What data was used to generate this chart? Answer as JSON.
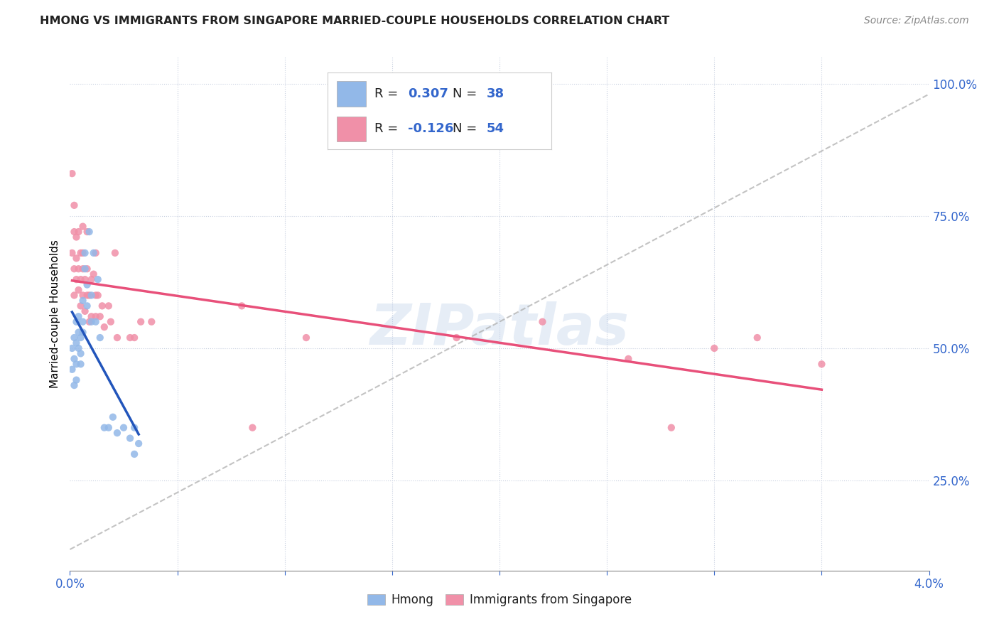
{
  "title": "HMONG VS IMMIGRANTS FROM SINGAPORE MARRIED-COUPLE HOUSEHOLDS CORRELATION CHART",
  "source": "Source: ZipAtlas.com",
  "ylabel": "Married-couple Households",
  "watermark": "ZIPatlas",
  "bottom_legend": [
    "Hmong",
    "Immigrants from Singapore"
  ],
  "hmong_color": "#92b8e8",
  "singapore_color": "#f090a8",
  "hmong_line_color": "#2255bb",
  "singapore_line_color": "#e8507a",
  "trend_line_color": "#aaaaaa",
  "xlim": [
    0.0,
    4.0
  ],
  "ylim": [
    0.08,
    1.05
  ],
  "yticks": [
    0.25,
    0.5,
    0.75,
    1.0
  ],
  "ytick_labels": [
    "25.0%",
    "50.0%",
    "75.0%",
    "100.0%"
  ],
  "R_hmong": "0.307",
  "N_hmong": "38",
  "R_singapore": "-0.126",
  "N_singapore": "54",
  "hmong_x": [
    0.01,
    0.01,
    0.02,
    0.02,
    0.02,
    0.03,
    0.03,
    0.03,
    0.03,
    0.04,
    0.04,
    0.04,
    0.05,
    0.05,
    0.05,
    0.06,
    0.06,
    0.06,
    0.07,
    0.07,
    0.08,
    0.08,
    0.09,
    0.1,
    0.1,
    0.11,
    0.12,
    0.13,
    0.14,
    0.16,
    0.18,
    0.2,
    0.22,
    0.25,
    0.28,
    0.3,
    0.3,
    0.32
  ],
  "hmong_y": [
    0.46,
    0.5,
    0.48,
    0.52,
    0.43,
    0.51,
    0.47,
    0.55,
    0.44,
    0.53,
    0.5,
    0.56,
    0.49,
    0.52,
    0.47,
    0.55,
    0.53,
    0.59,
    0.65,
    0.68,
    0.62,
    0.58,
    0.72,
    0.6,
    0.55,
    0.68,
    0.55,
    0.63,
    0.52,
    0.35,
    0.35,
    0.37,
    0.34,
    0.35,
    0.33,
    0.35,
    0.3,
    0.32
  ],
  "singapore_x": [
    0.01,
    0.01,
    0.02,
    0.02,
    0.02,
    0.02,
    0.03,
    0.03,
    0.03,
    0.04,
    0.04,
    0.04,
    0.05,
    0.05,
    0.05,
    0.06,
    0.06,
    0.06,
    0.06,
    0.07,
    0.07,
    0.08,
    0.08,
    0.08,
    0.09,
    0.09,
    0.1,
    0.1,
    0.11,
    0.12,
    0.12,
    0.12,
    0.13,
    0.14,
    0.15,
    0.16,
    0.18,
    0.19,
    0.21,
    0.22,
    0.28,
    0.3,
    0.33,
    0.38,
    0.8,
    0.85,
    1.1,
    1.8,
    2.2,
    2.6,
    2.8,
    3.0,
    3.2,
    3.5
  ],
  "singapore_y": [
    0.83,
    0.68,
    0.72,
    0.65,
    0.6,
    0.77,
    0.63,
    0.71,
    0.67,
    0.72,
    0.65,
    0.61,
    0.68,
    0.63,
    0.58,
    0.65,
    0.6,
    0.68,
    0.73,
    0.63,
    0.57,
    0.65,
    0.6,
    0.72,
    0.6,
    0.55,
    0.63,
    0.56,
    0.64,
    0.6,
    0.68,
    0.56,
    0.6,
    0.56,
    0.58,
    0.54,
    0.58,
    0.55,
    0.68,
    0.52,
    0.52,
    0.52,
    0.55,
    0.55,
    0.58,
    0.35,
    0.52,
    0.52,
    0.55,
    0.48,
    0.35,
    0.5,
    0.52,
    0.47
  ]
}
